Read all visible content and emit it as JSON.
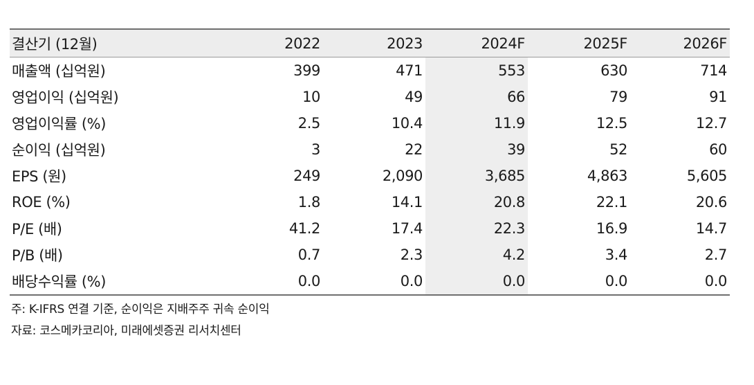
{
  "table": {
    "headers": [
      "결산기 (12월)",
      "2022",
      "2023",
      "2024F",
      "2025F",
      "2026F"
    ],
    "rows": [
      {
        "label": "매출액 (십억원)",
        "values": [
          "399",
          "471",
          "553",
          "630",
          "714"
        ]
      },
      {
        "label": "영업이익 (십억원)",
        "values": [
          "10",
          "49",
          "66",
          "79",
          "91"
        ]
      },
      {
        "label": "영업이익률 (%)",
        "values": [
          "2.5",
          "10.4",
          "11.9",
          "12.5",
          "12.7"
        ]
      },
      {
        "label": "순이익 (십억원)",
        "values": [
          "3",
          "22",
          "39",
          "52",
          "60"
        ]
      },
      {
        "label": "EPS (원)",
        "values": [
          "249",
          "2,090",
          "3,685",
          "4,863",
          "5,605"
        ]
      },
      {
        "label": "ROE (%)",
        "values": [
          "1.8",
          "14.1",
          "20.8",
          "22.1",
          "20.6"
        ]
      },
      {
        "label": "P/E (배)",
        "values": [
          "41.2",
          "17.4",
          "22.3",
          "16.9",
          "14.7"
        ]
      },
      {
        "label": "P/B (배)",
        "values": [
          "0.7",
          "2.3",
          "4.2",
          "3.4",
          "2.7"
        ]
      },
      {
        "label": "배당수익률 (%)",
        "values": [
          "0.0",
          "0.0",
          "0.0",
          "0.0",
          "0.0"
        ]
      }
    ]
  },
  "notes": {
    "note": "주: K-IFRS 연결 기준, 순이익은 지배주주 귀속 순이익",
    "source": "자료: 코스메카코리아, 미래에셋증권 리서치센터"
  },
  "colors": {
    "header_bg": "#ededed",
    "forecast_shade": "#eeeeee",
    "rule": "#6f6f6f"
  }
}
